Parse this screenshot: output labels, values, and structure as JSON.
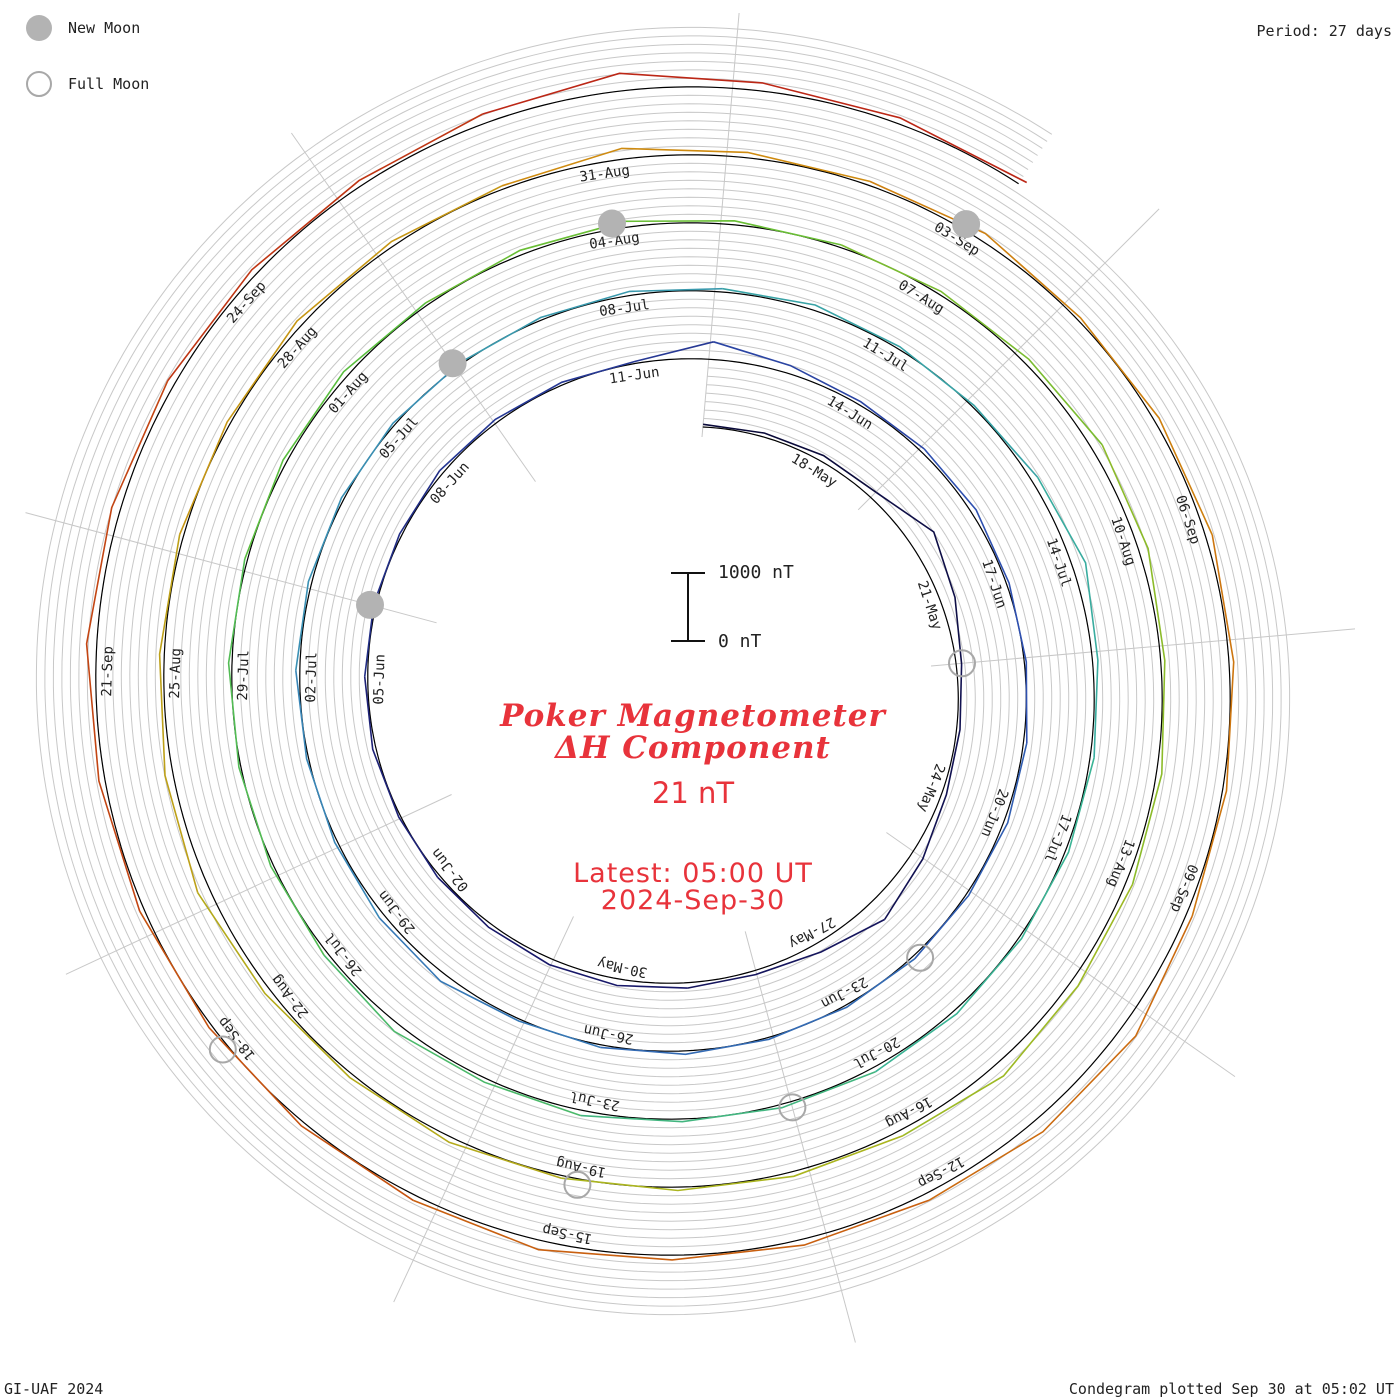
{
  "legend": {
    "new_moon_label": "New Moon",
    "full_moon_label": "Full Moon"
  },
  "period_label": "Period: 27 days",
  "footer": {
    "left": "GI-UAF 2024",
    "right": "Condegram plotted Sep 30 at 05:02 UT"
  },
  "center": {
    "title_line1": "Poker Magnetometer",
    "title_line2": "ΔH Component",
    "value": "21 nT",
    "latest": "Latest: 05:00 UT",
    "date": "2024-Sep-30"
  },
  "scale_bar": {
    "top_label": "1000 nT",
    "bottom_label": "0 nT"
  },
  "colors": {
    "text_red": "#e8333b",
    "new_moon": "#b3b3b3",
    "full_moon": "#a8a8a8",
    "grid": "#c8c8c8",
    "baseline": "#000000",
    "spiral_gradient": [
      "#0a0a3a",
      "#1a1a6e",
      "#2e4fb0",
      "#3a8ab8",
      "#39b39a",
      "#5cbf3a",
      "#a8b820",
      "#d08a10",
      "#c85a10",
      "#b81818"
    ]
  },
  "chart_data": {
    "type": "line",
    "subtype": "spiral-condegram",
    "title": "Poker Magnetometer ΔH Component",
    "units": "nT",
    "period_days": 27,
    "start_date": "2024-05-16",
    "end_date": "2024-09-30",
    "scale_reference": [
      0,
      1000
    ],
    "date_labels": [
      "18-May",
      "21-May",
      "24-May",
      "27-May",
      "30-May",
      "02-Jun",
      "05-Jun",
      "08-Jun",
      "11-Jun",
      "14-Jun",
      "17-Jun",
      "20-Jun",
      "23-Jun",
      "26-Jun",
      "29-Jun",
      "02-Jul",
      "05-Jul",
      "08-Jul",
      "11-Jul",
      "14-Jul",
      "17-Jul",
      "20-Jul",
      "23-Jul",
      "26-Jul",
      "29-Jul",
      "01-Aug",
      "04-Aug",
      "07-Aug",
      "10-Aug",
      "13-Aug",
      "16-Aug",
      "19-Aug",
      "22-Aug",
      "25-Aug",
      "28-Aug",
      "31-Aug",
      "03-Sep",
      "06-Sep",
      "09-Sep",
      "12-Sep",
      "15-Sep",
      "18-Sep",
      "21-Sep",
      "24-Sep"
    ],
    "new_moons": [
      "06-Jun",
      "06-Jul",
      "04-Aug",
      "03-Sep"
    ],
    "full_moons": [
      "22-May",
      "22-Jun",
      "21-Jul",
      "19-Aug",
      "18-Sep"
    ],
    "series": [
      {
        "name": "ΔH",
        "values": [
          40,
          60,
          90,
          110,
          380,
          220,
          80,
          50,
          70,
          180,
          320,
          140,
          60,
          80,
          100,
          90,
          60,
          40,
          30,
          50,
          45,
          40,
          35,
          60,
          50,
          40,
          30,
          260,
          120,
          50,
          60,
          80,
          40,
          30,
          50,
          60,
          40,
          45,
          35,
          30,
          50,
          40,
          30,
          120,
          80,
          40,
          30,
          60,
          50,
          40,
          35,
          30,
          40,
          60,
          50,
          80,
          40,
          30,
          100,
          200,
          80,
          60,
          50,
          40,
          60,
          70,
          50,
          40,
          80,
          60,
          120,
          60,
          40,
          30,
          50,
          40,
          60,
          80,
          40,
          70,
          90,
          60,
          40,
          50,
          80,
          160,
          140,
          60,
          80,
          100,
          120,
          200,
          90,
          70,
          50,
          40,
          80,
          60,
          90,
          180,
          120,
          70,
          60,
          50,
          90,
          70,
          50,
          160,
          80,
          60,
          120,
          50,
          80,
          100,
          70,
          60,
          90,
          240,
          200,
          110,
          90,
          70,
          140,
          80,
          60,
          50,
          70,
          90,
          150,
          130,
          110,
          90,
          80,
          140,
          260,
          120,
          90,
          80
        ]
      }
    ]
  }
}
